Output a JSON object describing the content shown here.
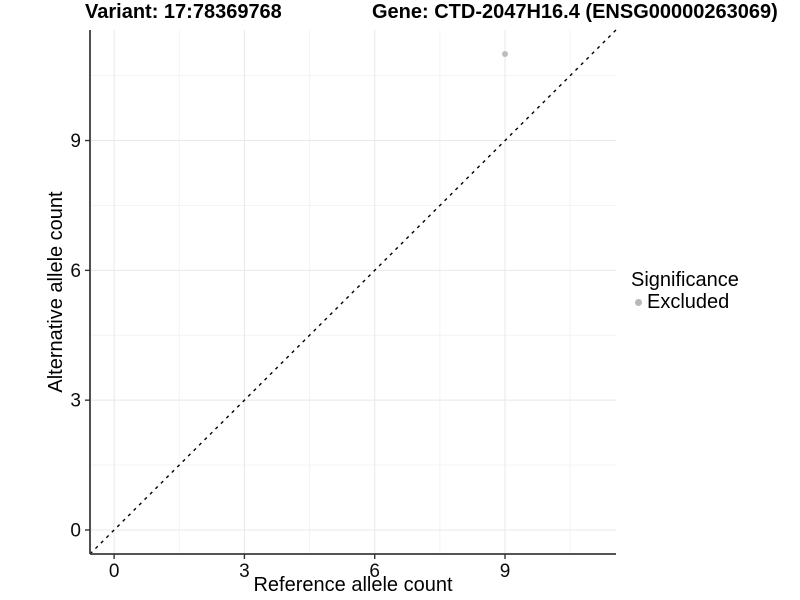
{
  "header": {
    "variant_title": "Variant: 17:78369768",
    "gene_title": "Gene: CTD-2047H16.4 (ENSG00000263069)"
  },
  "chart_data": {
    "type": "scatter",
    "xlabel": "Reference allele count",
    "ylabel": "Alternative allele count",
    "xlim": [
      -0.555,
      11.555
    ],
    "ylim": [
      -0.555,
      11.555
    ],
    "x_major_ticks": [
      0,
      3,
      6,
      9
    ],
    "y_major_ticks": [
      0,
      3,
      6,
      9
    ],
    "x_minor_ticks": [
      1.5,
      4.5,
      7.5,
      10.5
    ],
    "y_minor_ticks": [
      1.5,
      4.5,
      7.5,
      10.5
    ],
    "grid": true,
    "points": [
      {
        "x": 9,
        "y": 11,
        "series": "Excluded"
      }
    ],
    "identity_line": {
      "style": "dashed",
      "equation": "y = x"
    },
    "legend": {
      "title": "Significance",
      "position": "right",
      "entries": [
        {
          "label": "Excluded",
          "color": "#b8b8b8"
        }
      ]
    },
    "colors": {
      "point": "#bdbdbd",
      "major_grid": "#e8e8e8",
      "minor_grid": "#f3f3f3",
      "axis_line": "#3d3d3d",
      "tick": "#333333",
      "tick_label": "#0d0d0d",
      "dashed_line": "#000000",
      "background": "#ffffff"
    }
  }
}
